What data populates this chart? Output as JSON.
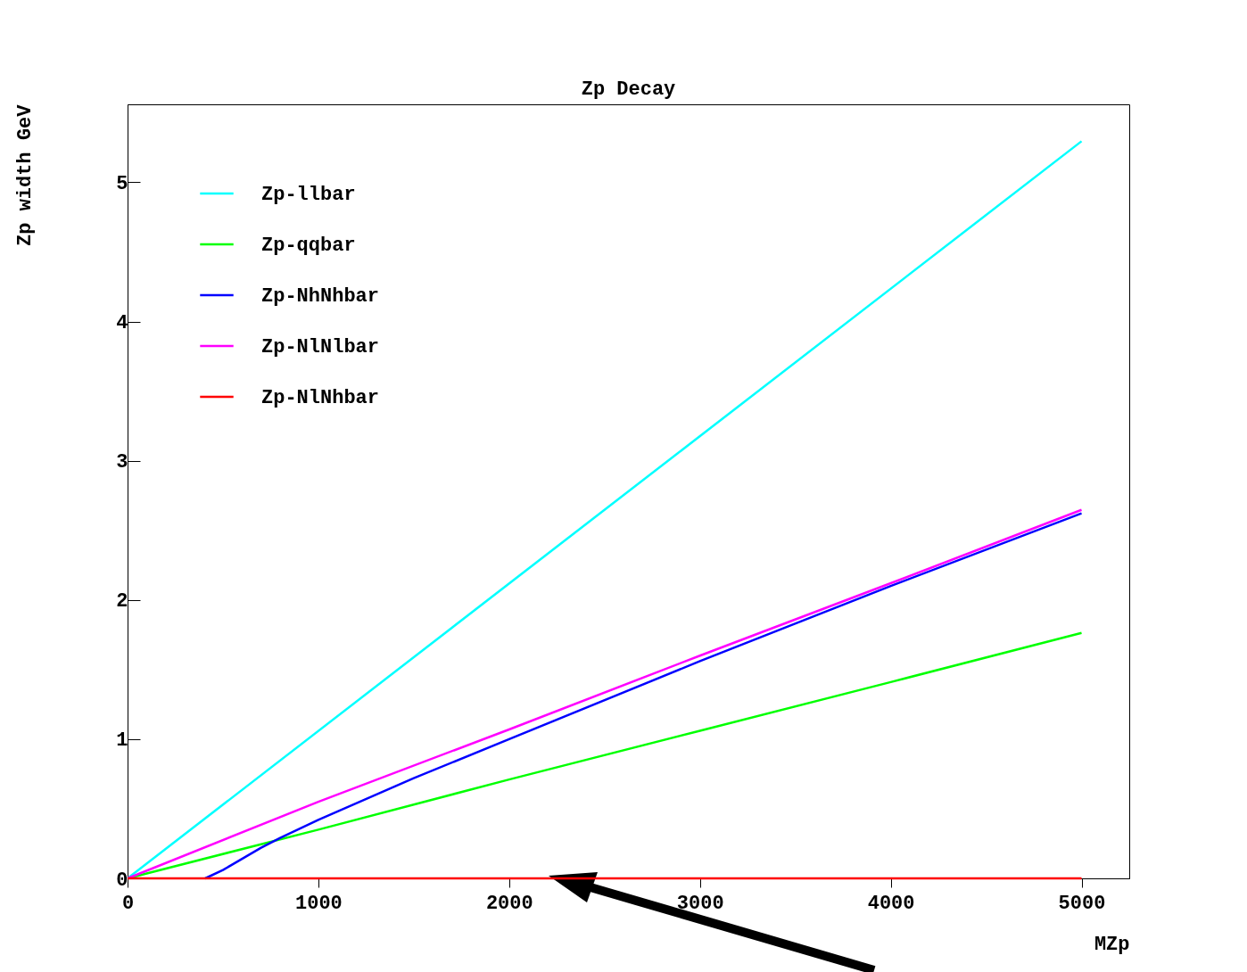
{
  "chart_data": {
    "type": "line",
    "title": "Zp Decay",
    "xlabel": "MZp",
    "ylabel": "Zp width GeV",
    "xlim": [
      0,
      5250
    ],
    "ylim": [
      0,
      5.56
    ],
    "xticks": [
      0,
      1000,
      2000,
      3000,
      4000,
      5000
    ],
    "yticks": [
      0,
      1,
      2,
      3,
      4,
      5
    ],
    "grid": false,
    "legend": "top left",
    "line_style": "solid",
    "series": [
      {
        "name": "Zp-llbar",
        "color": "#00ffff",
        "x": [
          0,
          5000
        ],
        "values": [
          0,
          5.295
        ]
      },
      {
        "name": "Zp-qqbar",
        "color": "#00ff00",
        "x": [
          0,
          1000,
          2000,
          3000,
          4000,
          5000
        ],
        "values": [
          0,
          0.35,
          0.71,
          1.06,
          1.41,
          1.763
        ]
      },
      {
        "name": "Zp-NhNhbar",
        "color": "#0000ff",
        "x": [
          407,
          500,
          600,
          700,
          800,
          1000,
          1500,
          2000,
          3000,
          4000,
          5000
        ],
        "values": [
          0,
          0.06,
          0.14,
          0.22,
          0.29,
          0.42,
          0.72,
          1.0,
          1.56,
          2.1,
          2.622
        ]
      },
      {
        "name": "Zp-NlNlbar",
        "color": "#ff00ff",
        "x": [
          0,
          1000,
          2000,
          3000,
          4000,
          5000
        ],
        "values": [
          0,
          0.55,
          1.07,
          1.6,
          2.12,
          2.647
        ]
      },
      {
        "name": "Zp-NlNhbar",
        "color": "#ff0000",
        "x": [
          0,
          5000
        ],
        "values": [
          0,
          0
        ]
      }
    ]
  }
}
